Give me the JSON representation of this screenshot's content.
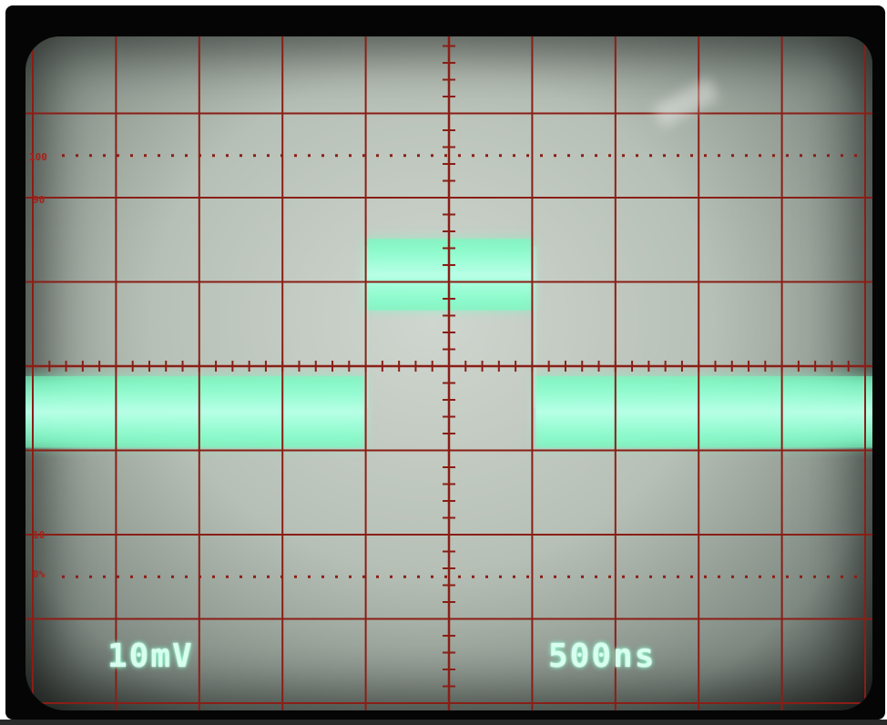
{
  "screen": {
    "volts_per_div": "10mV",
    "time_per_div": "500ns",
    "scale_labels": {
      "pct_100": "100",
      "pct_90": "90",
      "pct_10": "10",
      "pct_0": "0%"
    }
  },
  "colors": {
    "graticule": "#8a1e16",
    "trace": "#b8ffe6",
    "trace_glow": "#6fffc0",
    "screen": "#c4ccc3",
    "bezel": "#050505"
  },
  "waveform": {
    "divisions_x": 10,
    "divisions_y": 8,
    "high_level_div": 1.0,
    "low_level_div": -0.5,
    "pulse_start_div": 4,
    "pulse_end_div": 6
  }
}
